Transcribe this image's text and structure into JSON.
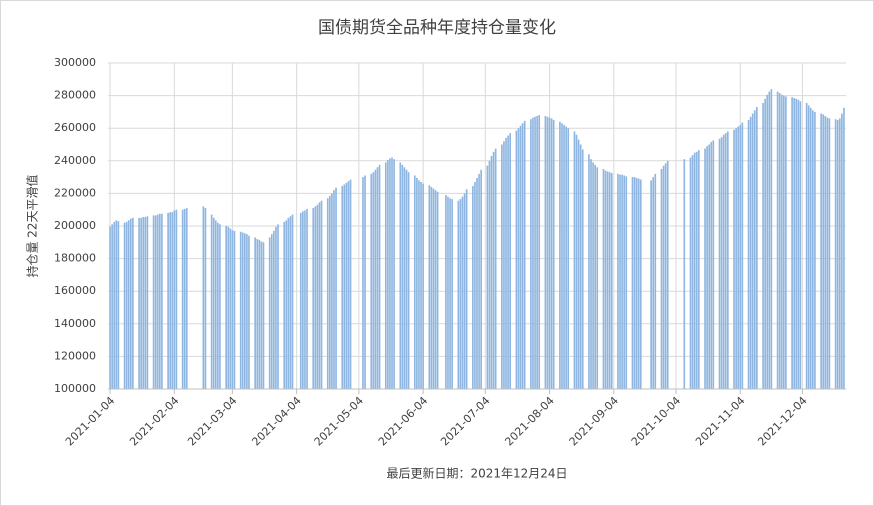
{
  "chart_data": {
    "type": "bar",
    "title": "国债期货全品种年度持仓量变化",
    "y_label": "持仓量 22天平滑值",
    "x_label": "最后更新日期：2021年12月24日",
    "color": "#8fb6e0",
    "grid": true,
    "ylim": [
      100000,
      300000
    ],
    "yticks": [
      100000,
      120000,
      140000,
      160000,
      180000,
      200000,
      220000,
      240000,
      260000,
      280000,
      300000
    ],
    "xlim": [
      "2021-01-03",
      "2021-12-25"
    ],
    "xticks": [
      "2021-01-04",
      "2021-02-04",
      "2021-03-04",
      "2021-04-04",
      "2021-05-04",
      "2021-06-04",
      "2021-07-04",
      "2021-08-04",
      "2021-09-04",
      "2021-10-04",
      "2021-11-04",
      "2021-12-04"
    ],
    "x": [
      "2021-01-04",
      "2021-01-05",
      "2021-01-06",
      "2021-01-07",
      "2021-01-08",
      "2021-01-11",
      "2021-01-12",
      "2021-01-13",
      "2021-01-14",
      "2021-01-15",
      "2021-01-18",
      "2021-01-19",
      "2021-01-20",
      "2021-01-21",
      "2021-01-22",
      "2021-01-25",
      "2021-01-26",
      "2021-01-27",
      "2021-01-28",
      "2021-01-29",
      "2021-02-01",
      "2021-02-02",
      "2021-02-03",
      "2021-02-04",
      "2021-02-05",
      "2021-02-08",
      "2021-02-09",
      "2021-02-10",
      "2021-02-18",
      "2021-02-19",
      "2021-02-22",
      "2021-02-23",
      "2021-02-24",
      "2021-02-25",
      "2021-02-26",
      "2021-03-01",
      "2021-03-02",
      "2021-03-03",
      "2021-03-04",
      "2021-03-05",
      "2021-03-08",
      "2021-03-09",
      "2021-03-10",
      "2021-03-11",
      "2021-03-12",
      "2021-03-15",
      "2021-03-16",
      "2021-03-17",
      "2021-03-18",
      "2021-03-19",
      "2021-03-22",
      "2021-03-23",
      "2021-03-24",
      "2021-03-25",
      "2021-03-26",
      "2021-03-29",
      "2021-03-30",
      "2021-03-31",
      "2021-04-01",
      "2021-04-02",
      "2021-04-06",
      "2021-04-07",
      "2021-04-08",
      "2021-04-09",
      "2021-04-12",
      "2021-04-13",
      "2021-04-14",
      "2021-04-15",
      "2021-04-16",
      "2021-04-19",
      "2021-04-20",
      "2021-04-21",
      "2021-04-22",
      "2021-04-23",
      "2021-04-26",
      "2021-04-27",
      "2021-04-28",
      "2021-04-29",
      "2021-04-30",
      "2021-05-06",
      "2021-05-07",
      "2021-05-10",
      "2021-05-11",
      "2021-05-12",
      "2021-05-13",
      "2021-05-14",
      "2021-05-17",
      "2021-05-18",
      "2021-05-19",
      "2021-05-20",
      "2021-05-21",
      "2021-05-24",
      "2021-05-25",
      "2021-05-26",
      "2021-05-27",
      "2021-05-28",
      "2021-05-31",
      "2021-06-01",
      "2021-06-02",
      "2021-06-03",
      "2021-06-04",
      "2021-06-07",
      "2021-06-08",
      "2021-06-09",
      "2021-06-10",
      "2021-06-11",
      "2021-06-15",
      "2021-06-16",
      "2021-06-17",
      "2021-06-18",
      "2021-06-21",
      "2021-06-22",
      "2021-06-23",
      "2021-06-24",
      "2021-06-25",
      "2021-06-28",
      "2021-06-29",
      "2021-06-30",
      "2021-07-01",
      "2021-07-02",
      "2021-07-05",
      "2021-07-06",
      "2021-07-07",
      "2021-07-08",
      "2021-07-09",
      "2021-07-12",
      "2021-07-13",
      "2021-07-14",
      "2021-07-15",
      "2021-07-16",
      "2021-07-19",
      "2021-07-20",
      "2021-07-21",
      "2021-07-22",
      "2021-07-23",
      "2021-07-26",
      "2021-07-27",
      "2021-07-28",
      "2021-07-29",
      "2021-07-30",
      "2021-08-02",
      "2021-08-03",
      "2021-08-04",
      "2021-08-05",
      "2021-08-06",
      "2021-08-09",
      "2021-08-10",
      "2021-08-11",
      "2021-08-12",
      "2021-08-13",
      "2021-08-16",
      "2021-08-17",
      "2021-08-18",
      "2021-08-19",
      "2021-08-20",
      "2021-08-23",
      "2021-08-24",
      "2021-08-25",
      "2021-08-26",
      "2021-08-27",
      "2021-08-30",
      "2021-08-31",
      "2021-09-01",
      "2021-09-02",
      "2021-09-03",
      "2021-09-06",
      "2021-09-07",
      "2021-09-08",
      "2021-09-09",
      "2021-09-10",
      "2021-09-13",
      "2021-09-14",
      "2021-09-15",
      "2021-09-16",
      "2021-09-17",
      "2021-09-22",
      "2021-09-23",
      "2021-09-24",
      "2021-09-27",
      "2021-09-28",
      "2021-09-29",
      "2021-09-30",
      "2021-10-08",
      "2021-10-11",
      "2021-10-12",
      "2021-10-13",
      "2021-10-14",
      "2021-10-15",
      "2021-10-18",
      "2021-10-19",
      "2021-10-20",
      "2021-10-21",
      "2021-10-22",
      "2021-10-25",
      "2021-10-26",
      "2021-10-27",
      "2021-10-28",
      "2021-10-29",
      "2021-11-01",
      "2021-11-02",
      "2021-11-03",
      "2021-11-04",
      "2021-11-05",
      "2021-11-08",
      "2021-11-09",
      "2021-11-10",
      "2021-11-11",
      "2021-11-12",
      "2021-11-15",
      "2021-11-16",
      "2021-11-17",
      "2021-11-18",
      "2021-11-19",
      "2021-11-22",
      "2021-11-23",
      "2021-11-24",
      "2021-11-25",
      "2021-11-26",
      "2021-11-29",
      "2021-11-30",
      "2021-12-01",
      "2021-12-02",
      "2021-12-03",
      "2021-12-06",
      "2021-12-07",
      "2021-12-08",
      "2021-12-09",
      "2021-12-10",
      "2021-12-13",
      "2021-12-14",
      "2021-12-15",
      "2021-12-16",
      "2021-12-17",
      "2021-12-20",
      "2021-12-21",
      "2021-12-22",
      "2021-12-23",
      "2021-12-24"
    ],
    "values": [
      199500,
      201000,
      202500,
      203500,
      203000,
      202000,
      202500,
      203500,
      204500,
      205000,
      205000,
      205000,
      205500,
      205500,
      206000,
      206500,
      206500,
      207000,
      207500,
      207500,
      208000,
      208500,
      208500,
      209500,
      210000,
      210000,
      210500,
      211000,
      212000,
      211000,
      207000,
      205000,
      203500,
      202000,
      201000,
      200000,
      199500,
      198500,
      197500,
      197000,
      196500,
      196000,
      195500,
      195000,
      194000,
      193000,
      192000,
      191500,
      190500,
      190000,
      193000,
      195000,
      197000,
      199500,
      201000,
      202500,
      203500,
      205000,
      206000,
      207000,
      208000,
      209000,
      209500,
      210500,
      211000,
      212000,
      213000,
      214500,
      215500,
      217000,
      218500,
      220000,
      222000,
      223500,
      224500,
      225500,
      226500,
      227500,
      228500,
      230000,
      231000,
      232000,
      233000,
      234500,
      236000,
      237500,
      239000,
      240500,
      241500,
      242000,
      241000,
      239000,
      237500,
      236000,
      234500,
      233000,
      231000,
      229500,
      228000,
      227000,
      226000,
      225000,
      224000,
      223000,
      222000,
      221000,
      219000,
      218000,
      217000,
      216500,
      215500,
      216500,
      218000,
      220000,
      222500,
      224500,
      227000,
      229500,
      232000,
      234500,
      237000,
      240000,
      243000,
      245500,
      247500,
      250000,
      252000,
      254000,
      255500,
      257000,
      258500,
      260000,
      261500,
      263000,
      264500,
      265500,
      266500,
      267000,
      267500,
      268000,
      267500,
      267000,
      266500,
      266000,
      265000,
      264000,
      263000,
      262000,
      261000,
      260000,
      258000,
      256000,
      253000,
      250000,
      247000,
      244000,
      241000,
      239000,
      237500,
      236000,
      235000,
      234000,
      233500,
      233000,
      232500,
      232000,
      231500,
      231500,
      231000,
      230500,
      230000,
      230000,
      229500,
      229000,
      228500,
      228000,
      230000,
      232000,
      235000,
      237000,
      238500,
      240000,
      241000,
      242000,
      243500,
      245000,
      245500,
      246500,
      247500,
      249000,
      250000,
      251500,
      252500,
      253500,
      254500,
      256000,
      257000,
      258000,
      259000,
      260000,
      261000,
      262000,
      263500,
      265000,
      267000,
      269000,
      271000,
      273000,
      275500,
      278000,
      280500,
      282500,
      284000,
      282500,
      281500,
      280500,
      280000,
      279500,
      279000,
      278500,
      278000,
      277500,
      276500,
      275500,
      274000,
      272500,
      271000,
      270000,
      269000,
      268500,
      267500,
      266500,
      266000,
      265500,
      265000,
      266000,
      269000,
      272500
    ]
  }
}
